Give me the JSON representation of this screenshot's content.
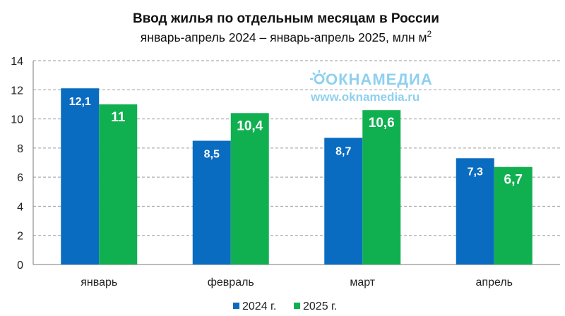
{
  "chart_data": {
    "type": "bar",
    "title": "Ввод жилья по отдельным месяцам в России",
    "subtitle": "январь-апрель 2024 – январь-апрель 2025, млн м",
    "subtitle_sup": "2",
    "categories": [
      "январь",
      "февраль",
      "март",
      "апрель"
    ],
    "series": [
      {
        "name": "2024 г.",
        "values": [
          12.1,
          8.5,
          8.7,
          7.3
        ],
        "labels": [
          "12,1",
          "8,5",
          "8,7",
          "7,3"
        ],
        "color": "#0a6cc0"
      },
      {
        "name": "2025 г.",
        "values": [
          11,
          10.4,
          10.6,
          6.7
        ],
        "labels": [
          "11",
          "10,4",
          "10,6",
          "6,7"
        ],
        "color": "#10b050"
      }
    ],
    "ylim": [
      0,
      14
    ],
    "yticks": [
      0,
      2,
      4,
      6,
      8,
      10,
      12,
      14
    ],
    "ytick_labels": [
      "0",
      "2",
      "4",
      "6",
      "8",
      "10",
      "12",
      "14"
    ],
    "grid": true,
    "legend_position": "bottom"
  },
  "watermark": {
    "brand_prefix": "ОКНА",
    "brand_suffix": "МЕДИА",
    "url": "www.oknamedia.ru",
    "color": "#8fd0ef"
  }
}
